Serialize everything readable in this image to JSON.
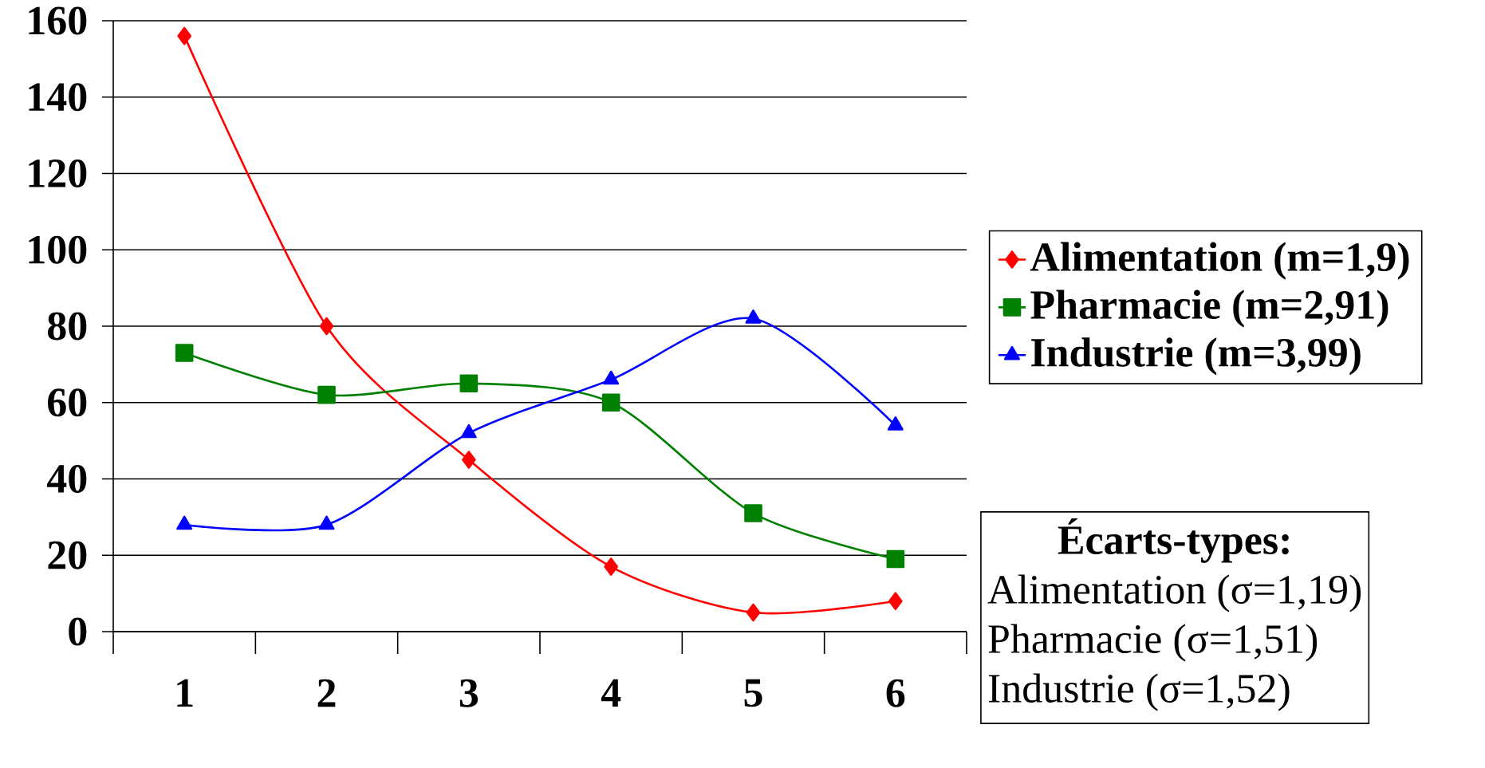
{
  "chart_data": {
    "type": "line",
    "categories": [
      "1",
      "2",
      "3",
      "4",
      "5",
      "6"
    ],
    "series": [
      {
        "name": "Alimentation (m=1,9)",
        "color": "#ff0000",
        "marker": "diamond",
        "values": [
          156,
          80,
          45,
          17,
          5,
          8
        ]
      },
      {
        "name": "Pharmacie (m=2,91)",
        "color": "#008000",
        "marker": "square",
        "values": [
          73,
          62,
          65,
          60,
          31,
          19
        ]
      },
      {
        "name": "Industrie (m=3,99)",
        "color": "#0000ff",
        "marker": "triangle",
        "values": [
          28,
          28,
          52,
          66,
          82,
          54
        ]
      }
    ],
    "ylim": [
      0,
      160
    ],
    "yticks": [
      0,
      20,
      40,
      60,
      80,
      100,
      120,
      140,
      160
    ],
    "grid": "y",
    "legend": "right",
    "line_style": "solid",
    "annotations": [
      "Écarts-types:",
      "Alimentation (σ=1,19)",
      "Pharmacie (σ=1,51)",
      "Industrie (σ=1,52)"
    ]
  }
}
